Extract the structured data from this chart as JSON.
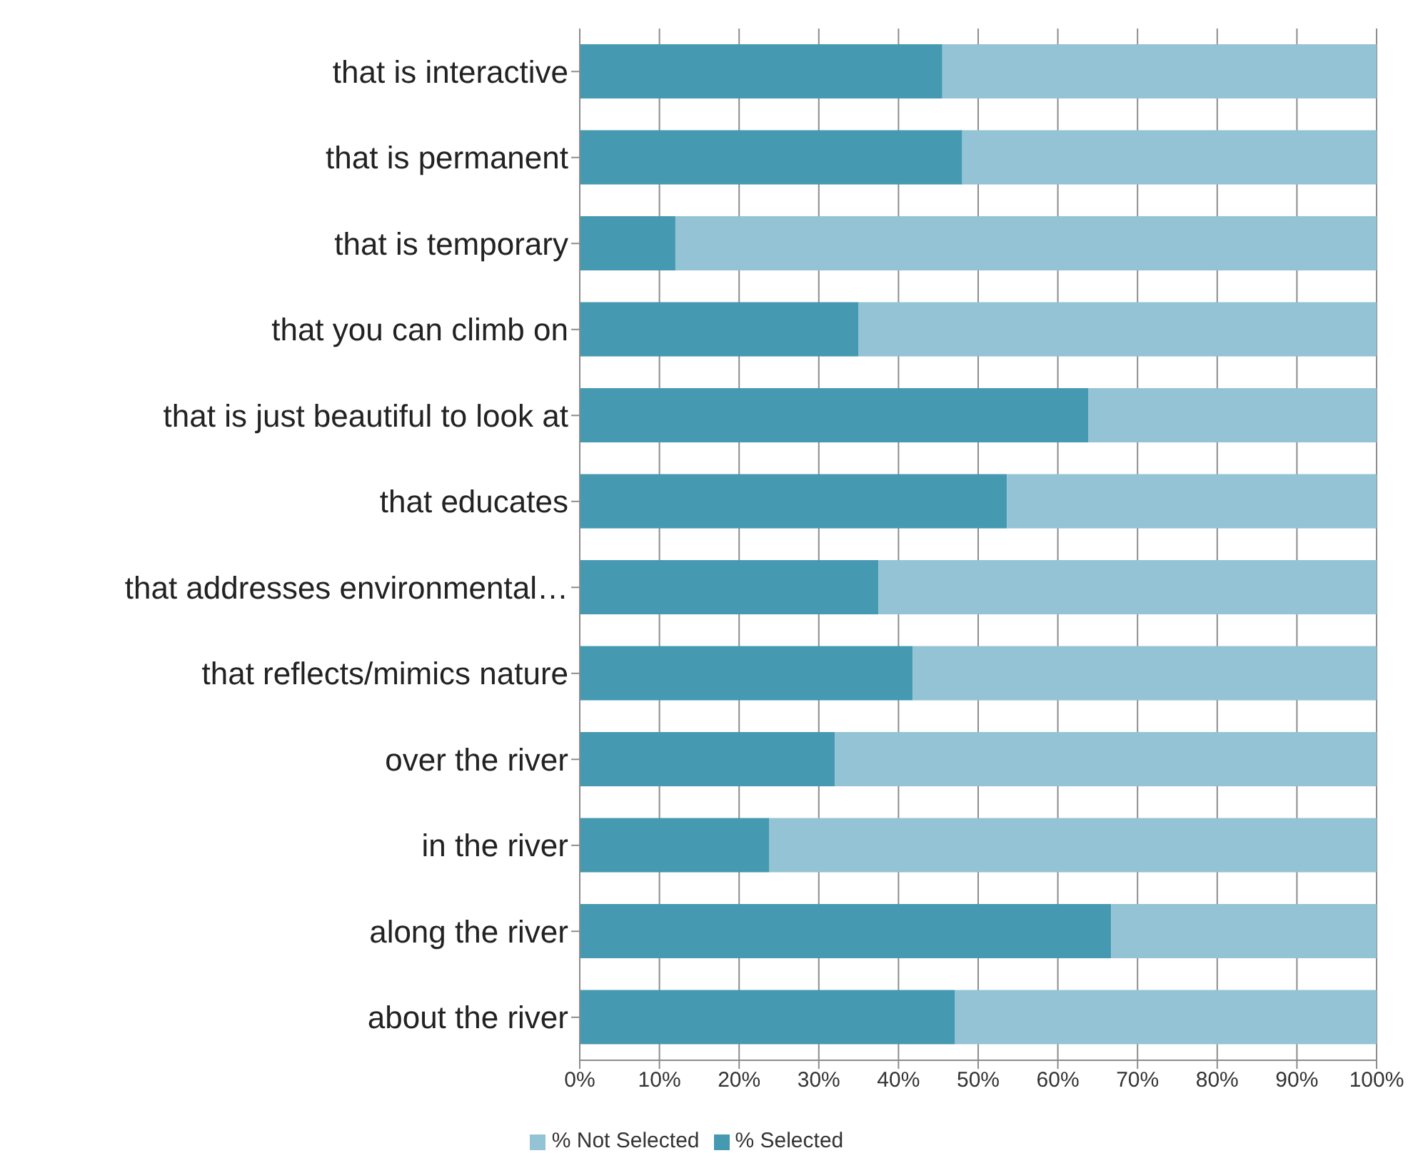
{
  "chart_data": {
    "type": "bar",
    "orientation": "horizontal",
    "stacked": true,
    "categories": [
      "that is interactive",
      "that is permanent",
      "that is temporary",
      "that you can climb on",
      "that is just beautiful to look at",
      "that educates",
      "that addresses environmental…",
      "that reflects/mimics nature",
      "over the river",
      "in the river",
      "along the river",
      "about the river"
    ],
    "series": [
      {
        "name": "% Selected",
        "color": "#4599b1",
        "values": [
          45.5,
          48,
          12,
          35,
          63.8,
          53.6,
          37.5,
          41.8,
          32,
          23.8,
          66.7,
          47.1
        ]
      },
      {
        "name": "% Not Selected",
        "color": "#93c3d5",
        "values": [
          54.5,
          52,
          88,
          65,
          36.2,
          46.4,
          62.5,
          58.2,
          68,
          76.2,
          33.3,
          52.9
        ]
      }
    ],
    "xlim": [
      0,
      100
    ],
    "xticks": [
      {
        "value": 0,
        "label": "0%"
      },
      {
        "value": 10,
        "label": "10%"
      },
      {
        "value": 20,
        "label": "20%"
      },
      {
        "value": 30,
        "label": "30%"
      },
      {
        "value": 40,
        "label": "40%"
      },
      {
        "value": 50,
        "label": "50%"
      },
      {
        "value": 60,
        "label": "60%"
      },
      {
        "value": 70,
        "label": "70%"
      },
      {
        "value": 80,
        "label": "80%"
      },
      {
        "value": 90,
        "label": "90%"
      },
      {
        "value": 100,
        "label": "100%"
      }
    ],
    "grid": "x",
    "legend": "bottom"
  }
}
